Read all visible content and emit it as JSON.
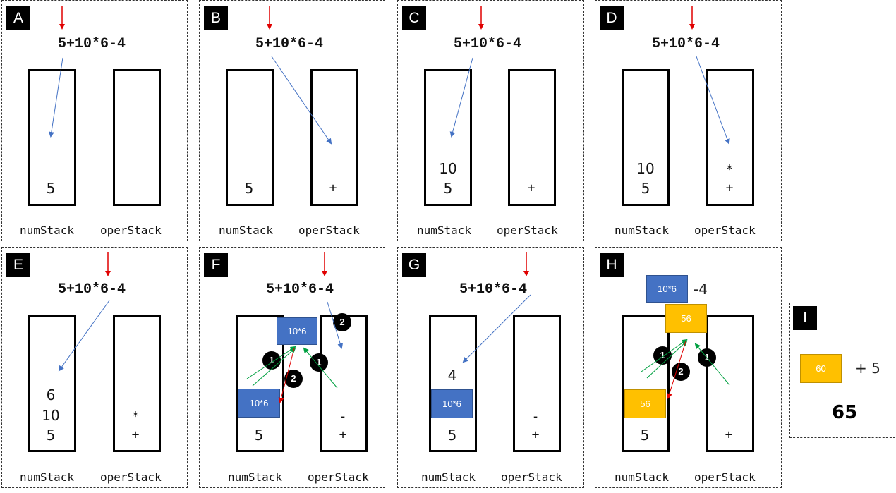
{
  "expression": "5+10*6-4",
  "stack_labels": {
    "num": "numStack",
    "oper": "operStack"
  },
  "panels": {
    "A": {
      "tag": "A",
      "num": [
        "5"
      ],
      "oper": []
    },
    "B": {
      "tag": "B",
      "num": [
        "5"
      ],
      "oper": [
        "+"
      ]
    },
    "C": {
      "tag": "C",
      "num": [
        "10",
        "5"
      ],
      "oper": [
        "+"
      ]
    },
    "D": {
      "tag": "D",
      "num": [
        "10",
        "5"
      ],
      "oper": [
        "*",
        "+"
      ]
    },
    "E": {
      "tag": "E",
      "num": [
        "6",
        "10",
        "5"
      ],
      "oper": [
        "*",
        "+"
      ]
    },
    "F": {
      "tag": "F",
      "num": [
        "5"
      ],
      "oper": [
        "-",
        "+"
      ],
      "box_top": "10*6",
      "box_bottom": "10*6"
    },
    "G": {
      "tag": "G",
      "num": [
        "4",
        "5"
      ],
      "oper": [
        "-",
        "+"
      ],
      "box": "10*6"
    },
    "H": {
      "tag": "H",
      "num": [
        "5"
      ],
      "oper": [
        "+"
      ],
      "box_top": "10*6",
      "rest": "-4",
      "gold_top": "56",
      "gold_bottom": "56"
    },
    "I": {
      "tag": "I",
      "gold": "60",
      "plus_five": "+ 5",
      "result": "65"
    }
  },
  "steps": {
    "one": "1",
    "two": "2"
  },
  "colors": {
    "pointer_red": "#e00000",
    "arrow_blue": "#4472c4",
    "arrow_green": "#00a040",
    "box_blue": "#4472c4",
    "box_gold": "#ffc000"
  }
}
